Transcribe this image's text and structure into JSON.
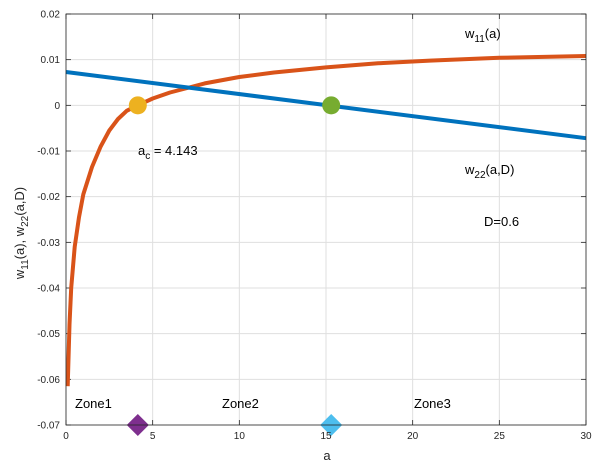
{
  "chart_data": {
    "type": "line",
    "title": "",
    "xlabel": "a",
    "ylabel": "w11(a), w22(a,D)",
    "xlim": [
      0,
      30
    ],
    "ylim": [
      -0.07,
      0.02
    ],
    "xticks": [
      0,
      5,
      10,
      15,
      20,
      25,
      30
    ],
    "yticks": [
      -0.07,
      -0.06,
      -0.05,
      -0.04,
      -0.03,
      -0.02,
      -0.01,
      0,
      0.01,
      0.02
    ],
    "grid": true,
    "series": [
      {
        "name": "w11(a)",
        "color": "#d95319",
        "x": [
          0.1,
          0.2,
          0.3,
          0.5,
          0.75,
          1,
          1.5,
          2,
          2.5,
          3,
          3.5,
          4.143,
          5,
          6,
          7,
          8,
          10,
          12,
          15,
          18,
          21,
          25,
          30
        ],
        "y": [
          -0.0615,
          -0.048,
          -0.04,
          -0.031,
          -0.0245,
          -0.0195,
          -0.0135,
          -0.009,
          -0.0055,
          -0.003,
          -0.0012,
          0,
          0.0015,
          0.0028,
          0.0038,
          0.0048,
          0.0062,
          0.0072,
          0.0083,
          0.0092,
          0.0098,
          0.0104,
          0.0108
        ]
      },
      {
        "name": "w22(a,D)",
        "color": "#0072bd",
        "x": [
          0,
          30
        ],
        "y": [
          0.0073,
          -0.0072
        ]
      }
    ],
    "points": [
      {
        "name": "a_c",
        "x": 4.143,
        "y": 0,
        "shape": "circle",
        "color": "#edb120"
      },
      {
        "name": "intersection-a15",
        "x": 15.3,
        "y": 0,
        "shape": "circle",
        "color": "#77ac30"
      },
      {
        "name": "zone-boundary-1",
        "x": 4.143,
        "y": -0.07,
        "shape": "diamond",
        "color": "#7e2f8e"
      },
      {
        "name": "zone-boundary-2",
        "x": 15.3,
        "y": -0.07,
        "shape": "diamond",
        "color": "#4dbeee"
      }
    ],
    "annotations": {
      "w11": {
        "main": "w",
        "sub": "11",
        "rest": "(a)"
      },
      "w22": {
        "main": "w",
        "sub": "22",
        "rest": "(a,D)"
      },
      "ac": {
        "main": "a",
        "sub": "c",
        "rest": " = 4.143"
      },
      "d": "D=0.6",
      "zone1": "Zone1",
      "zone2": "Zone2",
      "zone3": "Zone3"
    },
    "ylabel_parts": {
      "w": "w",
      "s1": "11",
      "mid": "(a), w",
      "s2": "22",
      "end": "(a,D)"
    }
  }
}
